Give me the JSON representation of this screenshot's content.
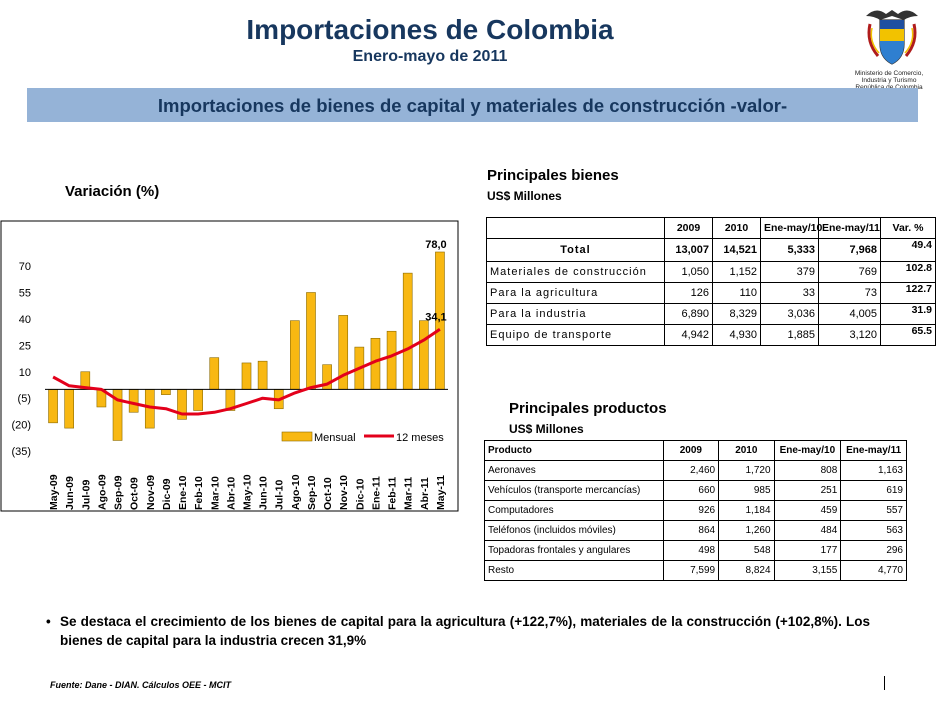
{
  "header": {
    "title": "Importaciones de Colombia",
    "subtitle": "Enero-mayo de 2011",
    "ministry_lines": [
      "Ministerio de Comercio,",
      "Industria y Turismo",
      "República de Colombia"
    ],
    "logo": "colombia-coat-of-arms-icon"
  },
  "banner": {
    "text": "Importaciones de bienes de capital y materiales de construcción -valor-",
    "color": "#95b3d7"
  },
  "chart_section": {
    "title": "Variación (%)"
  },
  "chart_data": {
    "type": "bar+line",
    "title": "Variación (%)",
    "categories": [
      "May-09",
      "Jun-09",
      "Jul-09",
      "Ago-09",
      "Sep-09",
      "Oct-09",
      "Nov-09",
      "Dic-09",
      "Ene-10",
      "Feb-10",
      "Mar-10",
      "Abr-10",
      "May-10",
      "Jun-10",
      "Jul-10",
      "Ago-10",
      "Sep-10",
      "Oct-10",
      "Nov-10",
      "Dic-10",
      "Ene-11",
      "Feb-11",
      "Mar-11",
      "Abr-11",
      "May-11"
    ],
    "yticks": [
      70,
      55,
      40,
      25,
      10,
      -5,
      -20,
      -35
    ],
    "ytick_labels": [
      "70",
      "55",
      "40",
      "25",
      "10",
      "(5)",
      "(20)",
      "(35)"
    ],
    "ylim": [
      -35,
      78
    ],
    "series": [
      {
        "name": "Mensual",
        "type": "bar",
        "color": "#f8b812",
        "values": [
          -19,
          -22,
          10,
          -10,
          -29,
          -13,
          -22,
          -3,
          -17,
          -12,
          18,
          -12,
          15,
          16,
          -11,
          39,
          55,
          14,
          42,
          24,
          29,
          33,
          66,
          39,
          78.0
        ]
      },
      {
        "name": "12 meses",
        "type": "line",
        "color": "#e3001b",
        "values": [
          7,
          2,
          1,
          0,
          -6,
          -8,
          -10,
          -11,
          -14,
          -14,
          -13,
          -11,
          -8,
          -5,
          -6,
          -2,
          1,
          3,
          8,
          12,
          16,
          19,
          23,
          28,
          34.1
        ]
      }
    ],
    "data_labels": [
      {
        "series": "Mensual",
        "index": 24,
        "text": "78,0"
      },
      {
        "series": "12 meses",
        "index": 24,
        "text": "34,1"
      }
    ],
    "legend": {
      "placement": "bottom-right",
      "items": [
        "Mensual",
        "12 meses"
      ]
    }
  },
  "goods": {
    "title": "Principales bienes",
    "unit": "US$ Millones",
    "columns": [
      "",
      "2009",
      "2010",
      "Ene-may/10",
      "Ene-may/11",
      "Var. %"
    ],
    "total": {
      "label": "Total",
      "values": [
        "13,007",
        "14,521",
        "5,333",
        "7,968"
      ],
      "var": "49.4"
    },
    "rows": [
      {
        "label": "Materiales de construcción",
        "values": [
          "1,050",
          "1,152",
          "379",
          "769"
        ],
        "var": "102.8"
      },
      {
        "label": "Para la agricultura",
        "values": [
          "126",
          "110",
          "33",
          "73"
        ],
        "var": "122.7"
      },
      {
        "label": "Para la industria",
        "values": [
          "6,890",
          "8,329",
          "3,036",
          "4,005"
        ],
        "var": "31.9"
      },
      {
        "label": "Equipo de transporte",
        "values": [
          "4,942",
          "4,930",
          "1,885",
          "3,120"
        ],
        "var": "65.5"
      }
    ]
  },
  "products": {
    "title": "Principales productos",
    "unit": "US$ Millones",
    "columns": [
      "Producto",
      "2009",
      "2010",
      "Ene-may/10",
      "Ene-may/11"
    ],
    "rows": [
      {
        "label": "Aeronaves",
        "values": [
          "2,460",
          "1,720",
          "808",
          "1,163"
        ]
      },
      {
        "label": "Vehículos (transporte mercancías)",
        "values": [
          "660",
          "985",
          "251",
          "619"
        ]
      },
      {
        "label": "Computadores",
        "values": [
          "926",
          "1,184",
          "459",
          "557"
        ]
      },
      {
        "label": "Teléfonos (incluidos móviles)",
        "values": [
          "864",
          "1,260",
          "484",
          "563"
        ]
      },
      {
        "label": "Topadoras frontales y angulares",
        "values": [
          "498",
          "548",
          "177",
          "296"
        ]
      },
      {
        "label": "Resto",
        "values": [
          "7,599",
          "8,824",
          "3,155",
          "4,770"
        ]
      }
    ]
  },
  "note": {
    "bullet": "•",
    "text": "Se destaca el crecimiento de los bienes de capital para la agricultura (+122,7%), materiales de la construcción (+102,8%). Los bienes de capital para la industria crecen 31,9%"
  },
  "footer": {
    "source": "Fuente: Dane - DIAN. Cálculos OEE - MCIT"
  }
}
